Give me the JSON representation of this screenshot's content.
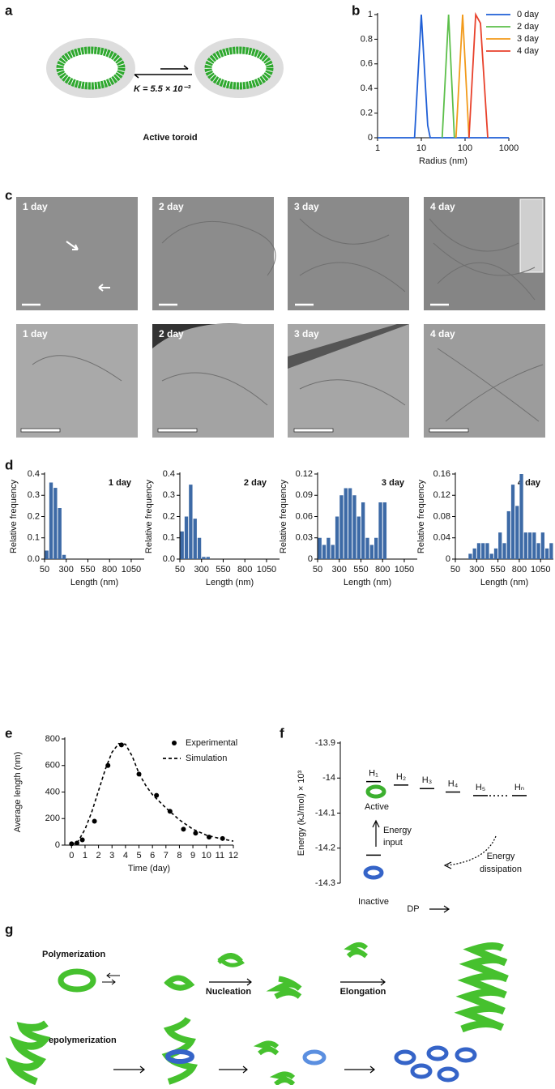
{
  "panel_labels": [
    "a",
    "b",
    "c",
    "d",
    "e",
    "f",
    "g"
  ],
  "figure_a": {
    "equation": "K = 5.5 × 10⁻³",
    "caption": "Active toroid"
  },
  "figure_c": {
    "top_labels": [
      "1 day",
      "2 day",
      "3 day",
      "4 day"
    ],
    "bottom_labels": [
      "1 day",
      "2 day",
      "3 day",
      "4 day"
    ]
  },
  "figure_g": {
    "polymerization": "Polymerization",
    "nucleation": "Nucleation",
    "elongation": "Elongation",
    "depolymerization": "Depolymerization"
  },
  "chart_data": [
    {
      "type": "line",
      "x_label": "Radius (nm)",
      "xlog": true,
      "xlim": [
        1,
        1000
      ],
      "xticks": [
        1,
        10,
        100,
        1000
      ],
      "ylim": [
        0,
        1
      ],
      "yticks": [
        0,
        0.2,
        0.4,
        0.6,
        0.8,
        1
      ],
      "series": [
        {
          "name": "0 day",
          "color": "#1f5fd6",
          "x": [
            1,
            7,
            10,
            14,
            16,
            1000
          ],
          "values": [
            0,
            0,
            1,
            0.1,
            0,
            0
          ]
        },
        {
          "name": "2 day",
          "color": "#5cbf4a",
          "x": [
            30,
            42,
            57
          ],
          "values": [
            0,
            1,
            0
          ]
        },
        {
          "name": "3 day",
          "color": "#f29a1a",
          "x": [
            62,
            88,
            123
          ],
          "values": [
            0,
            1,
            0
          ]
        },
        {
          "name": "4 day",
          "color": "#e8412b",
          "x": [
            123,
            175,
            225,
            330
          ],
          "values": [
            0,
            1,
            0.93,
            0
          ]
        }
      ]
    },
    {
      "type": "histogram",
      "title": "1 day",
      "x_label": "Length (nm)",
      "y_label": "Relative frequency",
      "color": "#3d6aa6",
      "xlim": [
        50,
        1200
      ],
      "xticks": [
        50,
        300,
        550,
        800,
        1050
      ],
      "ylim": [
        0,
        0.4
      ],
      "yticks": [
        {
          "value": 0,
          "label": "0.0"
        },
        0.1,
        0.2,
        0.3,
        0.4
      ],
      "bins": [
        50,
        100,
        150,
        200,
        250,
        300
      ],
      "values": [
        0.04,
        0.36,
        0.335,
        0.24,
        0.02
      ]
    },
    {
      "type": "histogram",
      "title": "2 day",
      "x_label": "Length (nm)",
      "y_label": "Relative frequency",
      "color": "#3d6aa6",
      "xlim": [
        50,
        1200
      ],
      "xticks": [
        50,
        300,
        550,
        800,
        1050
      ],
      "ylim": [
        0,
        0.4
      ],
      "yticks": [
        {
          "value": 0,
          "label": "0.0"
        },
        0.1,
        0.2,
        0.3,
        0.4
      ],
      "bins": [
        50,
        100,
        150,
        200,
        250,
        300,
        350,
        400
      ],
      "values": [
        0.13,
        0.2,
        0.35,
        0.19,
        0.1,
        0.01,
        0.01
      ]
    },
    {
      "type": "histogram",
      "title": "3 day",
      "x_label": "Length (nm)",
      "y_label": "Relative frequency",
      "color": "#3d6aa6",
      "xlim": [
        50,
        1200
      ],
      "xticks": [
        50,
        300,
        550,
        800,
        1050
      ],
      "ylim": [
        0,
        0.12
      ],
      "yticks": [
        0,
        0.03,
        0.06,
        0.09,
        0.12
      ],
      "bins": [
        50,
        100,
        150,
        200,
        250,
        300,
        350,
        400,
        450,
        500,
        550,
        600,
        650,
        700,
        750,
        800,
        850
      ],
      "values": [
        0.03,
        0.02,
        0.03,
        0.02,
        0.06,
        0.09,
        0.1,
        0.1,
        0.09,
        0.06,
        0.08,
        0.03,
        0.02,
        0.03,
        0.08,
        0.08
      ]
    },
    {
      "type": "histogram",
      "title": "4 day",
      "x_label": "Length (nm)",
      "y_label": "Relative frequency",
      "color": "#3d6aa6",
      "xlim": [
        50,
        1200
      ],
      "xticks": [
        50,
        300,
        550,
        800,
        1050
      ],
      "ylim": [
        0,
        0.16
      ],
      "yticks": [
        0,
        0.04,
        0.08,
        0.12,
        0.16
      ],
      "bins": [
        200,
        250,
        300,
        350,
        400,
        450,
        500,
        550,
        600,
        650,
        700,
        750,
        800,
        850,
        900,
        950,
        1000,
        1050,
        1100,
        1150,
        1200
      ],
      "values": [
        0.01,
        0.02,
        0.03,
        0.03,
        0.03,
        0.01,
        0.02,
        0.05,
        0.03,
        0.09,
        0.14,
        0.1,
        0.16,
        0.05,
        0.05,
        0.05,
        0.03,
        0.05,
        0.02,
        0.03
      ]
    },
    {
      "type": "line",
      "x_label": "Time (day)",
      "y_label": "Average length (nm)",
      "xlim": [
        -0.5,
        12
      ],
      "xticks": [
        0,
        1,
        2,
        3,
        4,
        5,
        6,
        7,
        8,
        9,
        10,
        11,
        12
      ],
      "ylim": [
        0,
        800
      ],
      "yticks": [
        0,
        200,
        400,
        600,
        800
      ],
      "series": [
        {
          "name": "Experimental",
          "style": "markers",
          "color": "#000000",
          "x": [
            0,
            0.4,
            0.8,
            1.7,
            2.7,
            3.7,
            5,
            6.3,
            7.3,
            8.3,
            9.2,
            10.2,
            11.2
          ],
          "values": [
            10,
            15,
            40,
            180,
            600,
            755,
            535,
            375,
            255,
            120,
            90,
            60,
            50
          ]
        },
        {
          "name": "Simulation",
          "style": "dashed",
          "color": "#000000",
          "x": [
            0,
            0.5,
            1,
            1.5,
            2,
            2.5,
            3,
            3.5,
            4,
            4.5,
            5,
            5.5,
            6,
            7,
            8,
            9,
            10,
            11,
            12
          ],
          "values": [
            0,
            30,
            120,
            250,
            410,
            570,
            700,
            765,
            760,
            670,
            540,
            450,
            380,
            280,
            190,
            120,
            75,
            50,
            30
          ]
        }
      ]
    },
    {
      "type": "levels",
      "x_label": "DP",
      "y_label": "Energy (kJ/mol) × 10³",
      "ylim": [
        -14.3,
        -13.9
      ],
      "yticks": [
        -13.9,
        -14,
        -14.1,
        -14.2,
        -14.3
      ],
      "levels": [
        {
          "label": "H₁",
          "value": -14.01
        },
        {
          "label": "H₂",
          "value": -14.02
        },
        {
          "label": "H₃",
          "value": -14.03
        },
        {
          "label": "H₄",
          "value": -14.04
        },
        {
          "label": "H₅",
          "value": -14.05
        },
        {
          "label": "Hₙ",
          "value": -14.05
        }
      ],
      "inactive_level": -14.22,
      "active_label": "Active",
      "inactive_label": "Inactive",
      "input_label": [
        "Energy",
        "input"
      ],
      "dissipation_label": [
        "Energy",
        "dissipation"
      ]
    }
  ]
}
